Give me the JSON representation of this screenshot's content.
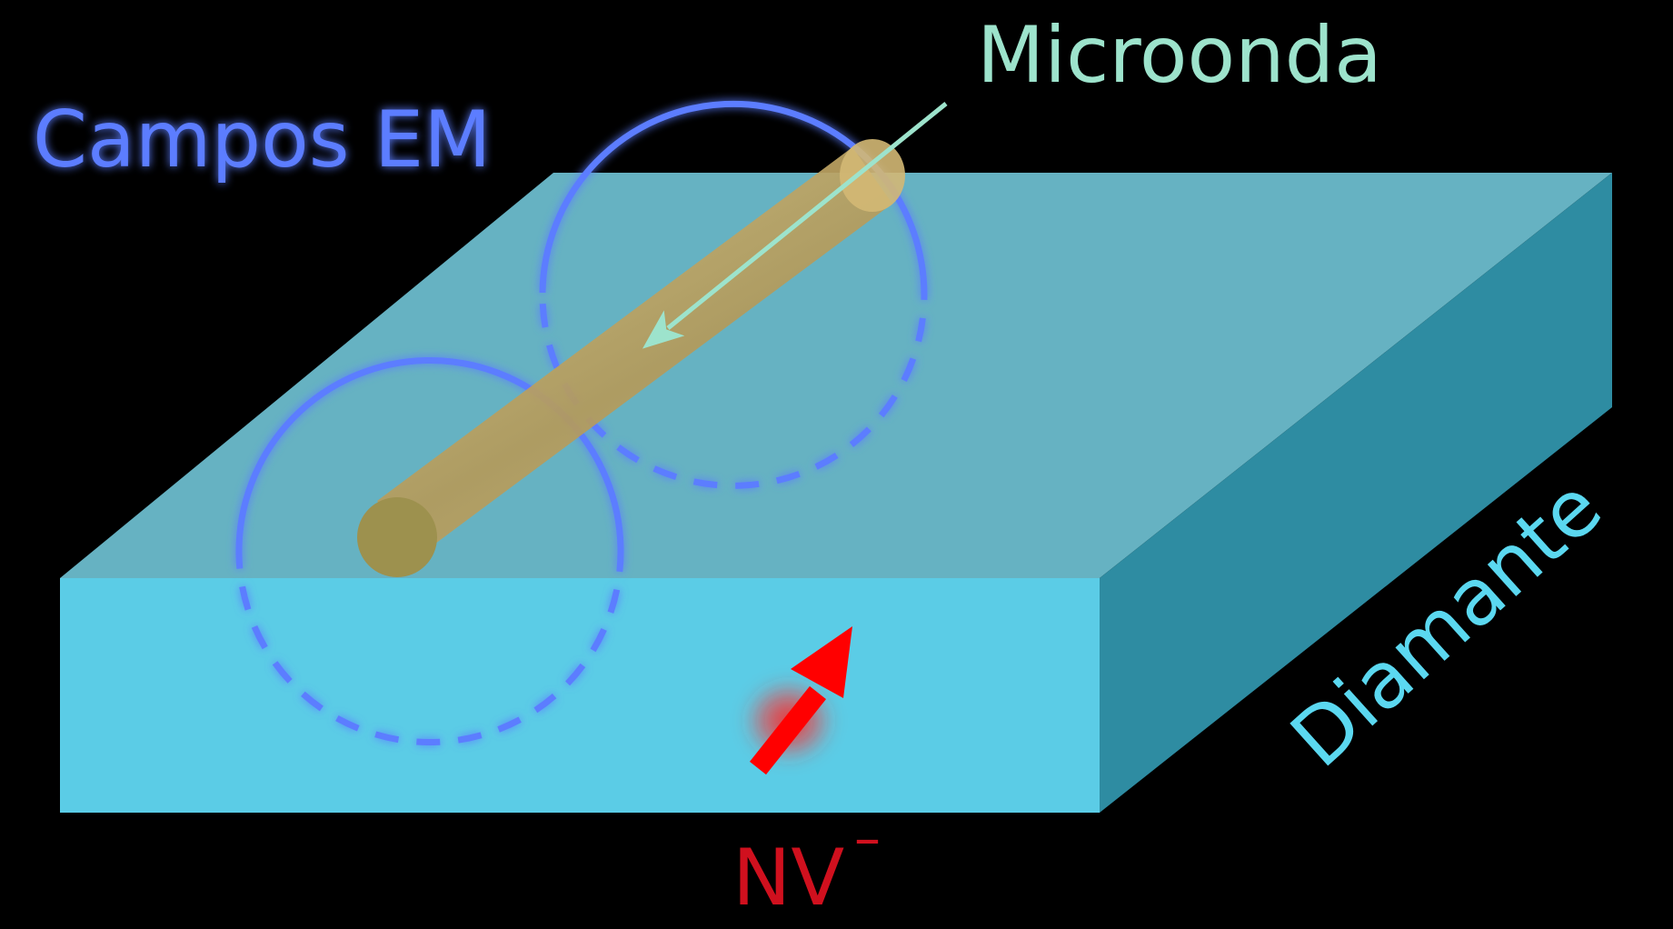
{
  "labels": {
    "microwave": "Microonda",
    "em_fields": "Campos EM",
    "diamond": "Diamante",
    "nv_center": "NV",
    "nv_charge": "–"
  },
  "colors": {
    "background": "#000000",
    "diamond_top": "#66b2c2",
    "diamond_front": "#5bcce6",
    "diamond_side": "#2e8ca2",
    "wire": "#c8a96a",
    "wire_end": "#9d914e",
    "em_field": "#5b7dff",
    "microwave": "#9de3cc",
    "nv_arrow": "#ff0000",
    "nv_label": "#d0101e",
    "diamond_label": "#5bd8f0"
  }
}
